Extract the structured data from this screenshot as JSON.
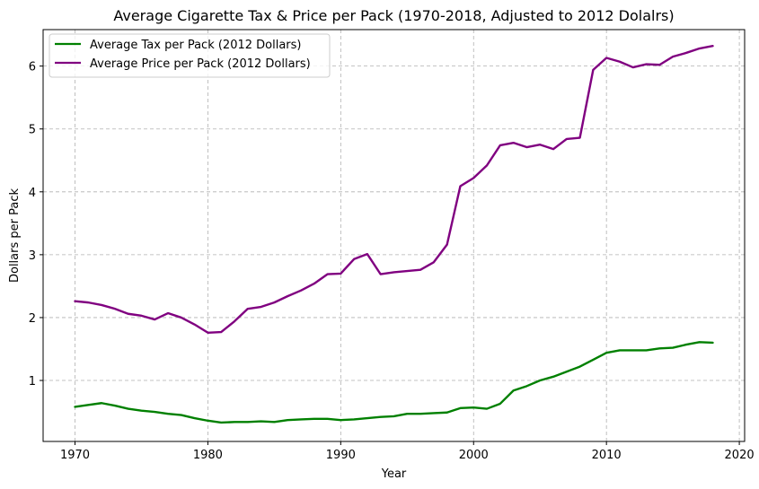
{
  "chart_data": {
    "type": "line",
    "title": "Average Cigarette Tax & Price per Pack (1970-2018, Adjusted to 2012 Dolalrs)",
    "xlabel": "Year",
    "ylabel": "Dollars per Pack",
    "xlim": [
      1967.6,
      2020.4
    ],
    "ylim": [
      0.03,
      6.58
    ],
    "xticks": [
      1970,
      1980,
      1990,
      2000,
      2010,
      2020
    ],
    "yticks": [
      1,
      2,
      3,
      4,
      5,
      6
    ],
    "grid": true,
    "legend_position": "top-left",
    "x": [
      1970,
      1971,
      1972,
      1973,
      1974,
      1975,
      1976,
      1977,
      1978,
      1979,
      1980,
      1981,
      1982,
      1983,
      1984,
      1985,
      1986,
      1987,
      1988,
      1989,
      1990,
      1991,
      1992,
      1993,
      1994,
      1995,
      1996,
      1997,
      1998,
      1999,
      2000,
      2001,
      2002,
      2003,
      2004,
      2005,
      2006,
      2007,
      2008,
      2009,
      2010,
      2011,
      2012,
      2013,
      2014,
      2015,
      2016,
      2017,
      2018
    ],
    "series": [
      {
        "name": "Average Tax per Pack (2012 Dollars)",
        "color": "#008000",
        "values": [
          0.58,
          0.61,
          0.64,
          0.6,
          0.55,
          0.52,
          0.5,
          0.47,
          0.45,
          0.4,
          0.36,
          0.33,
          0.34,
          0.34,
          0.35,
          0.34,
          0.37,
          0.38,
          0.39,
          0.39,
          0.37,
          0.38,
          0.4,
          0.42,
          0.43,
          0.47,
          0.47,
          0.48,
          0.49,
          0.56,
          0.57,
          0.55,
          0.63,
          0.84,
          0.91,
          1.0,
          1.06,
          1.14,
          1.22,
          1.33,
          1.44,
          1.48,
          1.48,
          1.48,
          1.51,
          1.52,
          1.57,
          1.61,
          1.6
        ]
      },
      {
        "name": "Average Price per Pack (2012 Dollars)",
        "color": "#800080",
        "values": [
          2.26,
          2.24,
          2.2,
          2.14,
          2.06,
          2.03,
          1.97,
          2.07,
          2.0,
          1.89,
          1.76,
          1.77,
          1.94,
          2.14,
          2.17,
          2.24,
          2.34,
          2.43,
          2.54,
          2.69,
          2.7,
          2.93,
          3.01,
          2.69,
          2.72,
          2.74,
          2.76,
          2.88,
          3.16,
          4.09,
          4.22,
          4.42,
          4.74,
          4.78,
          4.71,
          4.75,
          4.68,
          4.84,
          4.86,
          5.94,
          6.13,
          6.07,
          5.98,
          6.03,
          6.02,
          6.15,
          6.21,
          6.28,
          6.32
        ]
      }
    ]
  }
}
